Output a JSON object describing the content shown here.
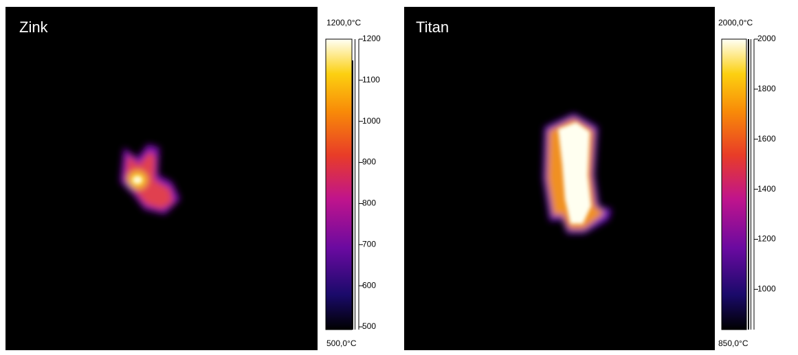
{
  "panels": [
    {
      "label": "Zink",
      "max_label": "1200,0°C",
      "min_label": "500,0°C",
      "ylim": [
        500,
        1200
      ],
      "yticks": [
        500,
        600,
        700,
        800,
        900,
        1000,
        1100,
        1200
      ]
    },
    {
      "label": "Titan",
      "max_label": "2000,0°C",
      "min_label": "850,0°C",
      "ylim": [
        850,
        2000
      ],
      "yticks": [
        1000,
        1200,
        1400,
        1600,
        1800,
        2000
      ]
    }
  ]
}
